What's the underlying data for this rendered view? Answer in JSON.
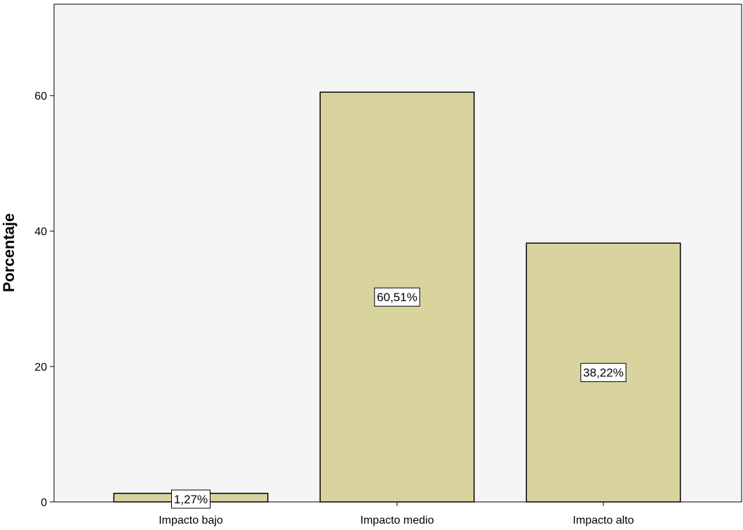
{
  "chart_data": {
    "type": "bar",
    "categories": [
      "Impacto bajo",
      "Impacto medio",
      "Impacto alto"
    ],
    "values": [
      1.27,
      60.51,
      38.22
    ],
    "data_labels": [
      "1,27%",
      "60,51%",
      "38,22%"
    ],
    "title": "",
    "xlabel": "",
    "ylabel": "Porcentaje",
    "ylim": [
      0,
      73.5
    ],
    "yticks": [
      0,
      20,
      40,
      60
    ],
    "ytick_labels": [
      "0",
      "20",
      "40",
      "60"
    ],
    "grid": false,
    "legend": "none",
    "colors": {
      "plot_background": "#f5f5f5",
      "bar_fill": "#d9d39e",
      "bar_stroke": "#000000",
      "label_box": "#ffffff"
    }
  }
}
